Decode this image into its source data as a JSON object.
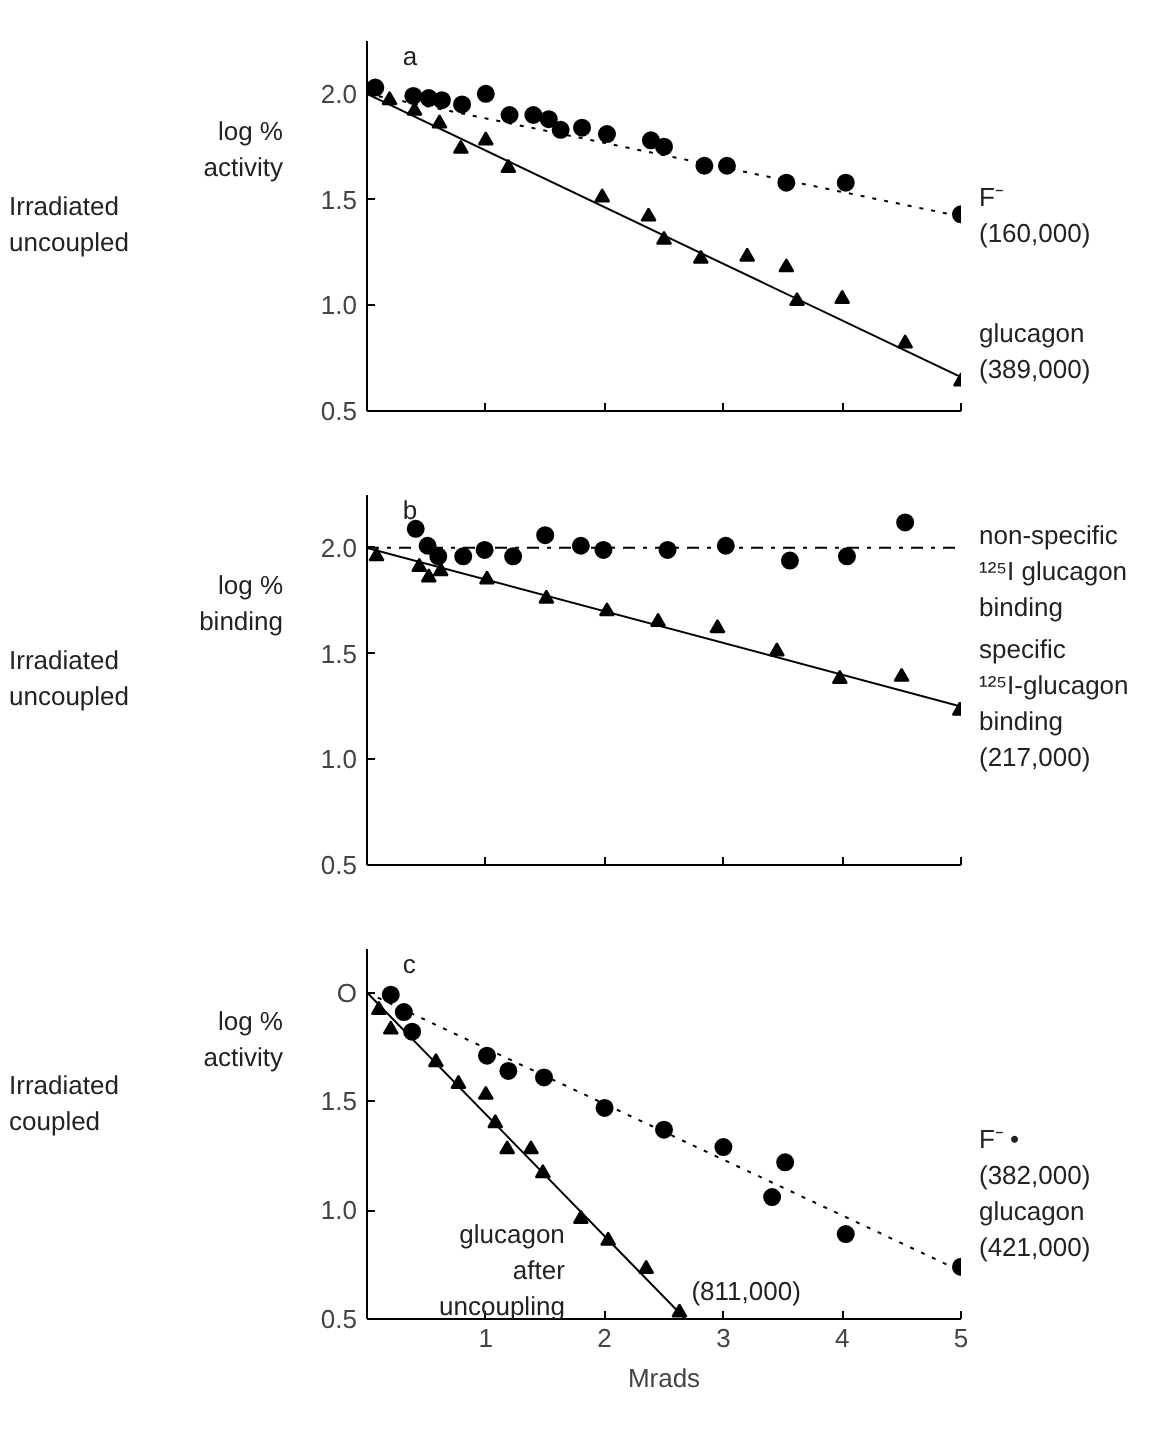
{
  "chart_data": [
    {
      "type": "scatter",
      "title": "a",
      "ylabel": "log %\nactivity",
      "annotations": [
        "Irradiated\nuncoupled",
        {
          "text": "F⁻\n(160,000)",
          "x": 5,
          "y": 1.43
        },
        {
          "text": "glucagon\n(389,000)",
          "x": 5,
          "y": 0.64
        }
      ],
      "xlim": [
        0,
        5
      ],
      "ylim": [
        0.5,
        2.25
      ],
      "xticks": [
        1,
        2,
        3,
        4,
        5
      ],
      "yticks": [
        {
          "value": 0.5,
          "label": "0.5"
        },
        {
          "value": 1,
          "label": "1.0"
        },
        {
          "value": 1.5,
          "label": "1.5"
        },
        {
          "value": 2,
          "label": "2.0"
        }
      ],
      "tick_labels": "y",
      "series": [
        {
          "marker": "circle",
          "color": "#000000",
          "x": [
            0.07,
            0.39,
            0.52,
            0.63,
            0.8,
            1.0,
            1.2,
            1.4,
            1.53,
            1.63,
            1.81,
            2.02,
            2.39,
            2.5,
            2.84,
            3.03,
            3.53,
            4.03,
            5.0
          ],
          "values": [
            2.03,
            1.99,
            1.98,
            1.97,
            1.95,
            2.0,
            1.9,
            1.9,
            1.88,
            1.83,
            1.84,
            1.81,
            1.78,
            1.75,
            1.66,
            1.66,
            1.58,
            1.58,
            1.43
          ]
        },
        {
          "marker": "triangle",
          "color": "#000000",
          "x": [
            0.19,
            0.4,
            0.61,
            0.79,
            1.0,
            1.19,
            1.98,
            2.37,
            2.5,
            2.81,
            3.2,
            3.53,
            3.62,
            4.0,
            4.53,
            5.0
          ],
          "values": [
            1.97,
            1.92,
            1.86,
            1.74,
            1.78,
            1.65,
            1.51,
            1.42,
            1.31,
            1.22,
            1.23,
            1.18,
            1.02,
            1.03,
            0.82,
            0.64
          ]
        },
        {
          "type": "line",
          "line_style": "dotted",
          "color": "#000000",
          "x": [
            0,
            5
          ],
          "values": [
            2.0,
            1.42
          ]
        },
        {
          "type": "line",
          "line_style": "solid",
          "color": "#000000",
          "x": [
            0,
            5
          ],
          "values": [
            2.0,
            0.66
          ]
        }
      ]
    },
    {
      "type": "scatter",
      "title": "b",
      "ylabel": "log %\nbinding",
      "annotations": [
        "Irradiated\nuncoupled",
        {
          "text": "non-specific\n¹²⁵I glucagon\nbinding",
          "x": 5,
          "y": 2.0
        },
        {
          "text": "specific\n¹²⁵I-glucagon\nbinding\n(217,000)",
          "x": 5,
          "y": 1.23
        }
      ],
      "xlim": [
        0,
        5
      ],
      "ylim": [
        0.5,
        2.25
      ],
      "xticks": [
        1,
        2,
        3,
        4,
        5
      ],
      "yticks": [
        {
          "value": 0.5,
          "label": "0.5"
        },
        {
          "value": 1,
          "label": "1.0"
        },
        {
          "value": 1.5,
          "label": "1.5"
        },
        {
          "value": 2,
          "label": "2.0"
        }
      ],
      "tick_labels": "y",
      "series": [
        {
          "marker": "circle",
          "color": "#000000",
          "x": [
            0.41,
            0.51,
            0.6,
            0.81,
            0.99,
            1.23,
            1.5,
            1.8,
            1.99,
            2.53,
            3.02,
            3.56,
            4.04,
            4.53
          ],
          "values": [
            2.09,
            2.01,
            1.96,
            1.96,
            1.99,
            1.96,
            2.06,
            2.01,
            1.99,
            1.99,
            2.01,
            1.94,
            1.96,
            2.12
          ]
        },
        {
          "marker": "triangle",
          "color": "#000000",
          "x": [
            0.08,
            0.44,
            0.52,
            0.62,
            1.01,
            1.51,
            2.02,
            2.45,
            2.95,
            3.45,
            3.98,
            4.5,
            4.99
          ],
          "values": [
            1.96,
            1.91,
            1.86,
            1.89,
            1.85,
            1.76,
            1.7,
            1.65,
            1.62,
            1.51,
            1.38,
            1.39,
            1.23
          ]
        },
        {
          "type": "line",
          "line_style": "dashed",
          "color": "#000000",
          "x": [
            0,
            5
          ],
          "values": [
            2.0,
            2.0
          ]
        },
        {
          "type": "line",
          "line_style": "solid",
          "color": "#000000",
          "x": [
            0,
            5
          ],
          "values": [
            2.0,
            1.25
          ]
        }
      ]
    },
    {
      "type": "scatter",
      "title": "c",
      "ylabel": "log %\nactivity",
      "xlabel": "Mrads",
      "annotations": [
        "Irradiated\ncoupled",
        {
          "text": "glucagon\nafter\nuncoupling",
          "x": 1.8,
          "y": 0.96
        },
        {
          "text": "(811,000)",
          "x": 2.63,
          "y": 0.53
        },
        {
          "text": "F⁻ •\n(382,000)\nglucagon\n(421,000)",
          "x": 5,
          "y": 0.74
        }
      ],
      "xlim": [
        0,
        5
      ],
      "ylim": [
        0.5,
        2.2
      ],
      "xticks": [
        1,
        2,
        3,
        4,
        5
      ],
      "yticks": [
        {
          "value": 0.5,
          "label": "0.5"
        },
        {
          "value": 1,
          "label": "1.0"
        },
        {
          "value": 1.5,
          "label": "1.5"
        },
        {
          "value": 2,
          "label": "O"
        }
      ],
      "series": [
        {
          "marker": "circle",
          "color": "#000000",
          "x": [
            0.2,
            0.31,
            0.38,
            1.01,
            1.19,
            1.49,
            2.0,
            2.5,
            3.0,
            3.41,
            3.52,
            4.03,
            5.0
          ],
          "values": [
            1.99,
            1.91,
            1.82,
            1.71,
            1.64,
            1.61,
            1.47,
            1.37,
            1.29,
            1.06,
            1.22,
            0.89,
            0.74
          ]
        },
        {
          "marker": "triangle",
          "color": "#000000",
          "x": [
            0.1,
            0.2,
            0.58,
            0.77,
            1.0,
            1.08,
            1.18,
            1.38,
            1.48,
            1.8,
            2.03,
            2.35,
            2.63
          ],
          "values": [
            1.92,
            1.83,
            1.68,
            1.58,
            1.53,
            1.4,
            1.28,
            1.28,
            1.17,
            0.96,
            0.86,
            0.73,
            0.53
          ]
        },
        {
          "type": "line",
          "line_style": "dotted",
          "color": "#000000",
          "x": [
            0,
            5
          ],
          "values": [
            2.0,
            0.72
          ]
        },
        {
          "type": "line",
          "line_style": "solid",
          "color": "#000000",
          "x": [
            0,
            2.68
          ],
          "values": [
            2.0,
            0.5
          ]
        }
      ]
    }
  ]
}
